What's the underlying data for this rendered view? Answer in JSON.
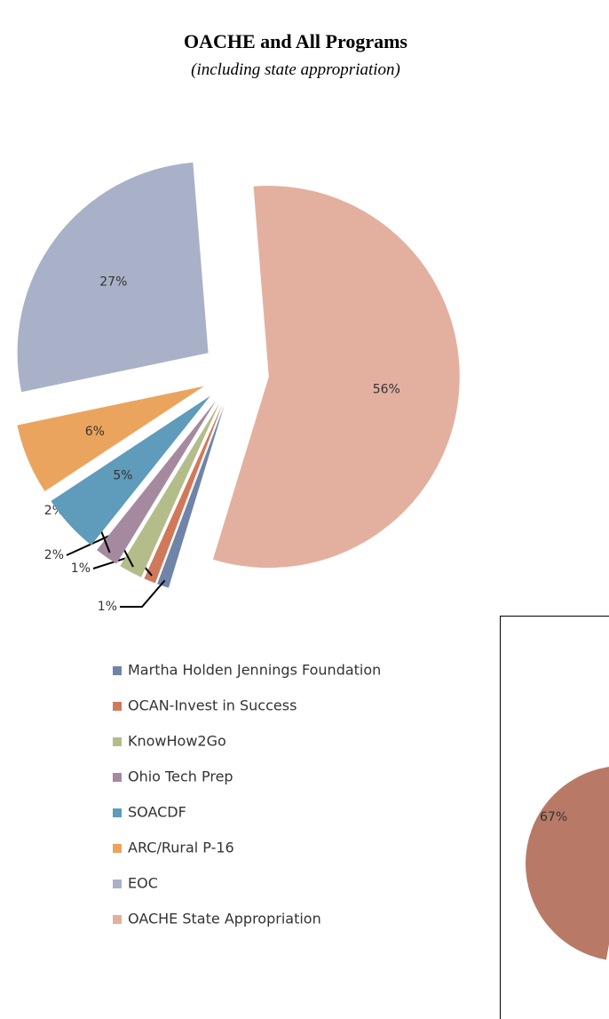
{
  "chart_data": [
    {
      "type": "pie",
      "title": "OACHE and All Programs",
      "subtitle": "(including state appropriation)",
      "categories": [
        "Martha Holden Jennings Foundation",
        "OCAN-Invest in Success",
        "KnowHow2Go",
        "Ohio Tech Prep",
        "SOACDF",
        "ARC/Rural P-16",
        "EOC",
        "OACHE State  Appropriation"
      ],
      "values": [
        1,
        1,
        2,
        2,
        5,
        6,
        27,
        56
      ],
      "value_labels": [
        "1%",
        "1%",
        "2%",
        "2%",
        "5%",
        "6%",
        "27%",
        "56%"
      ],
      "colors": [
        "#6f84a8",
        "#d0795a",
        "#b4bd8a",
        "#a58a9f",
        "#5f9bba",
        "#eba45e",
        "#a9b1c9",
        "#e3b09f"
      ],
      "legend": "bottom"
    },
    {
      "type": "pie",
      "values": [
        67
      ],
      "value_labels": [
        "67%"
      ],
      "colors": [
        "#b87a66"
      ]
    }
  ]
}
